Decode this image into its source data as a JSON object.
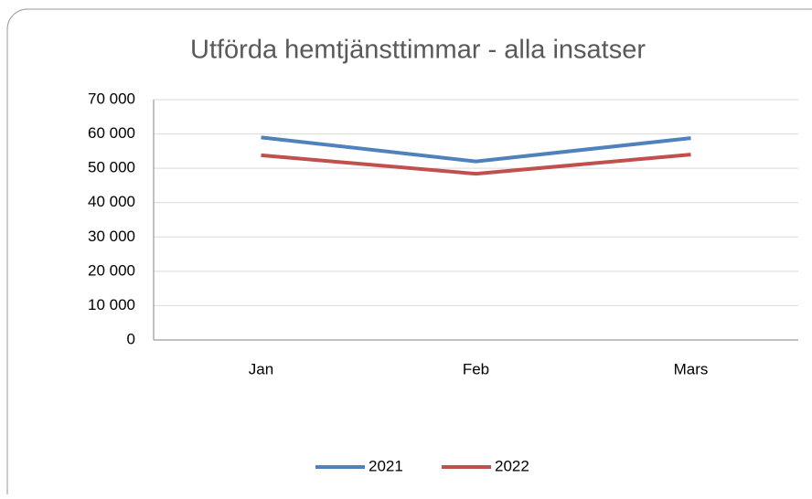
{
  "chart_data": {
    "type": "line",
    "title": "Utförda hemtjänsttimmar - alla insatser",
    "categories": [
      "Jan",
      "Feb",
      "Mars"
    ],
    "series": [
      {
        "name": "2021",
        "color": "#4f81bd",
        "values": [
          59000,
          52000,
          58800
        ]
      },
      {
        "name": "2022",
        "color": "#c0504d",
        "values": [
          53800,
          48400,
          54000
        ]
      }
    ],
    "ylim": [
      0,
      70000
    ],
    "yticks": [
      0,
      {
        "value": 10000,
        "label": "10 000"
      },
      {
        "value": 20000,
        "label": "20 000"
      },
      {
        "value": 30000,
        "label": "30 000"
      },
      {
        "value": 40000,
        "label": "40 000"
      },
      {
        "value": 50000,
        "label": "50 000"
      },
      {
        "value": 60000,
        "label": "60 000"
      },
      {
        "value": 70000,
        "label": "70 000"
      }
    ],
    "grid": true,
    "legend": "bottom"
  }
}
